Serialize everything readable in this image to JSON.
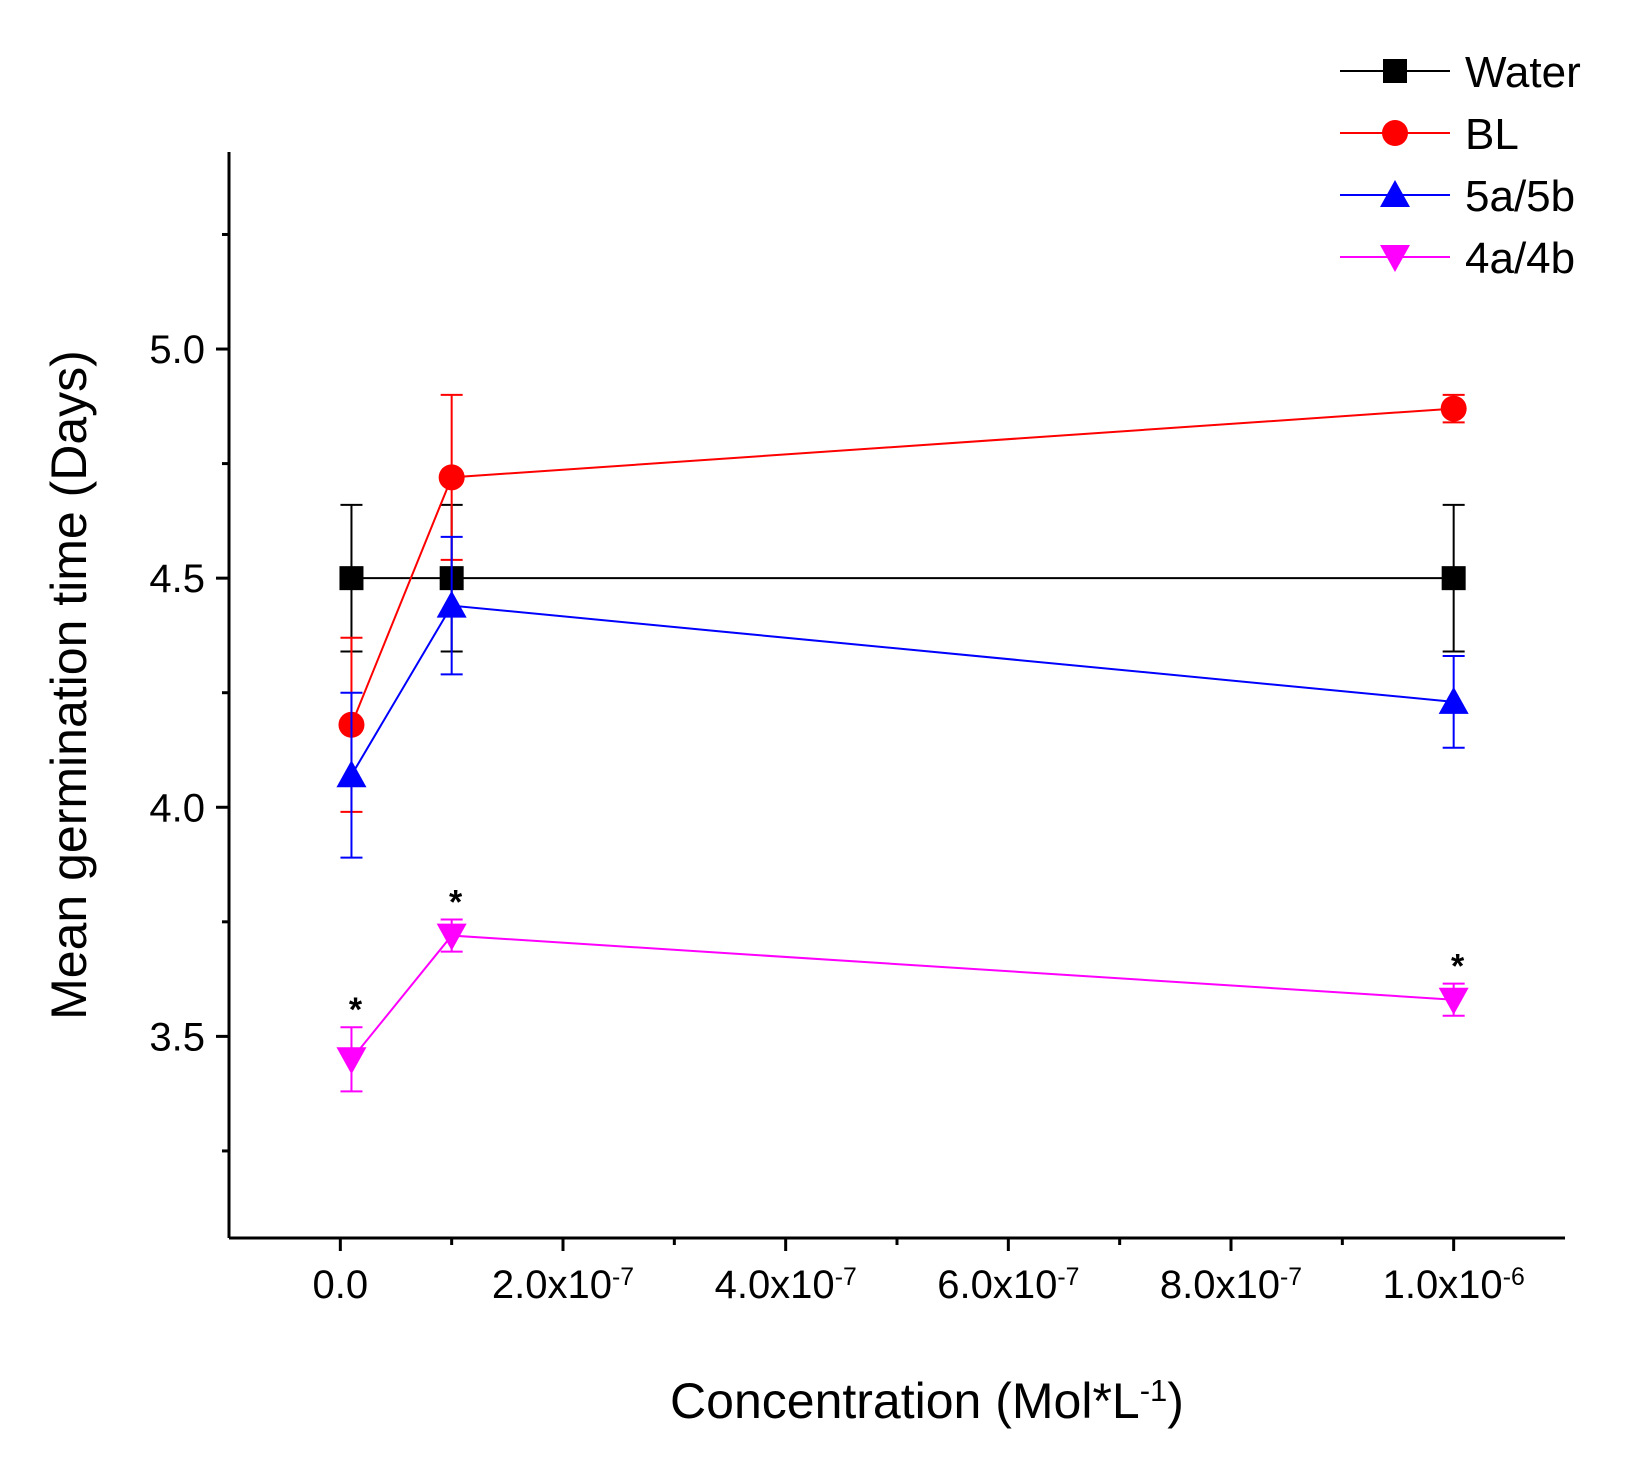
{
  "chart_data": {
    "type": "line",
    "title": "",
    "xlabel": "Concentration (Mol*L",
    "xlabel_sup": "-1",
    "xlabel_suffix": ")",
    "ylabel": "Mean germination time (Days)",
    "xlim": [
      -1e-07,
      1.1e-06
    ],
    "ylim": [
      3.06,
      5.43
    ],
    "x_ticks": [
      {
        "value": 0,
        "base": "0.0",
        "exp": ""
      },
      {
        "value": 2e-07,
        "base": "2.0x10",
        "exp": "-7"
      },
      {
        "value": 4e-07,
        "base": "4.0x10",
        "exp": "-7"
      },
      {
        "value": 6e-07,
        "base": "6.0x10",
        "exp": "-7"
      },
      {
        "value": 8e-07,
        "base": "8.0x10",
        "exp": "-7"
      },
      {
        "value": 1e-06,
        "base": "1.0x10",
        "exp": "-6"
      }
    ],
    "y_ticks": [
      {
        "value": 3.5,
        "label": "3.5"
      },
      {
        "value": 4.0,
        "label": "4.0"
      },
      {
        "value": 4.5,
        "label": "4.5"
      },
      {
        "value": 5.0,
        "label": "5.0"
      }
    ],
    "y_minor_ticks": [
      3.25,
      3.75,
      4.25,
      4.75,
      5.25
    ],
    "x_minor_ticks": [
      1e-07,
      3e-07,
      5e-07,
      7e-07,
      9e-07
    ],
    "legend_position": "top-right",
    "series": [
      {
        "name": "Water",
        "color": "#000000",
        "marker": "square",
        "x": [
          1e-08,
          1e-07,
          1e-06
        ],
        "y": [
          4.5,
          4.5,
          4.5
        ],
        "err": [
          0.16,
          0.16,
          0.16
        ],
        "significant": [
          false,
          false,
          false
        ]
      },
      {
        "name": "BL",
        "color": "#ff0000",
        "marker": "circle",
        "x": [
          1e-08,
          1e-07,
          1e-06
        ],
        "y": [
          4.18,
          4.72,
          4.87
        ],
        "err": [
          0.19,
          0.18,
          0.03
        ],
        "significant": [
          false,
          false,
          false
        ]
      },
      {
        "name": "5a/5b",
        "color": "#0000ff",
        "marker": "triangle-up",
        "x": [
          1e-08,
          1e-07,
          1e-06
        ],
        "y": [
          4.07,
          4.44,
          4.23
        ],
        "err": [
          0.18,
          0.15,
          0.1
        ],
        "significant": [
          false,
          false,
          false
        ]
      },
      {
        "name": "4a/4b",
        "color": "#ff00ff",
        "marker": "triangle-down",
        "x": [
          1e-08,
          1e-07,
          1e-06
        ],
        "y": [
          3.45,
          3.72,
          3.58
        ],
        "err": [
          0.07,
          0.035,
          0.035
        ],
        "significant": [
          true,
          true,
          true
        ]
      }
    ],
    "significance_mark": "*"
  }
}
